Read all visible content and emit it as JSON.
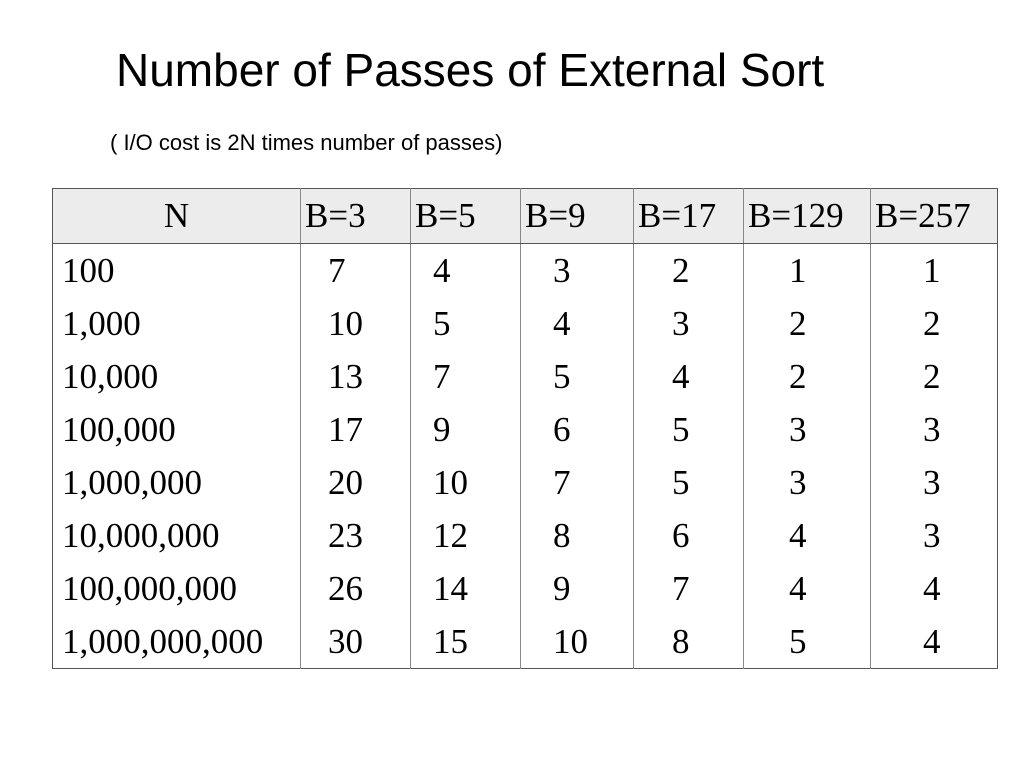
{
  "slide": {
    "title": "Number of Passes of External Sort",
    "subtitle": "( I/O cost is 2N times number of passes)"
  },
  "table": {
    "headers": [
      "N",
      "B=3",
      "B=5",
      "B=9",
      "B=17",
      "B=129",
      "B=257"
    ],
    "rows": [
      [
        "100",
        "7",
        "4",
        "3",
        "2",
        "1",
        "1"
      ],
      [
        "1,000",
        "10",
        "5",
        "4",
        "3",
        "2",
        "2"
      ],
      [
        "10,000",
        "13",
        "7",
        "5",
        "4",
        "2",
        "2"
      ],
      [
        "100,000",
        "17",
        "9",
        "6",
        "5",
        "3",
        "3"
      ],
      [
        "1,000,000",
        "20",
        "10",
        "7",
        "5",
        "3",
        "3"
      ],
      [
        "10,000,000",
        "23",
        "12",
        "8",
        "6",
        "4",
        "3"
      ],
      [
        "100,000,000",
        "26",
        "14",
        "9",
        "7",
        "4",
        "4"
      ],
      [
        "1,000,000,000",
        "30",
        "15",
        "10",
        "8",
        "5",
        "4"
      ]
    ]
  },
  "colors": {
    "header_background": "#ececec",
    "border": "#555555",
    "text": "#000000"
  }
}
